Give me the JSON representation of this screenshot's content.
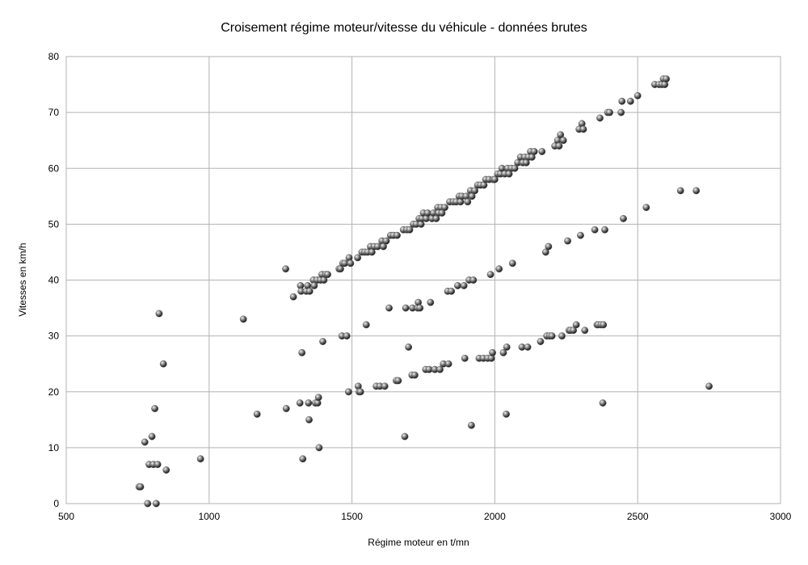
{
  "chart_data": {
    "type": "scatter",
    "title": "Croisement régime moteur/vitesse du véhicule - données brutes",
    "xlabel": "Régime moteur en t/mn",
    "ylabel": "Vitesses en km/h",
    "xlim": [
      500,
      3000
    ],
    "ylim": [
      0,
      80
    ],
    "xticks": [
      500,
      1000,
      1500,
      2000,
      2500,
      3000
    ],
    "yticks": [
      0,
      10,
      20,
      30,
      40,
      50,
      60,
      70,
      80
    ],
    "grid": true,
    "legend": "none",
    "marker_color": "#555555",
    "series": [
      {
        "points": [
          [
            755,
            3
          ],
          [
            760,
            3
          ],
          [
            775,
            11
          ],
          [
            785,
            0
          ],
          [
            790,
            7
          ],
          [
            800,
            12
          ],
          [
            805,
            7
          ],
          [
            810,
            17
          ],
          [
            815,
            0
          ],
          [
            820,
            7
          ],
          [
            825,
            34
          ],
          [
            840,
            25
          ],
          [
            850,
            6
          ],
          [
            970,
            8
          ],
          [
            1120,
            33
          ],
          [
            1168,
            16
          ],
          [
            1268,
            42
          ],
          [
            1270,
            17
          ],
          [
            1295,
            37
          ],
          [
            1318,
            18
          ],
          [
            1320,
            39
          ],
          [
            1322,
            38
          ],
          [
            1325,
            27
          ],
          [
            1328,
            8
          ],
          [
            1340,
            38
          ],
          [
            1345,
            39
          ],
          [
            1348,
            18
          ],
          [
            1350,
            15
          ],
          [
            1352,
            38
          ],
          [
            1365,
            40
          ],
          [
            1368,
            39
          ],
          [
            1372,
            18
          ],
          [
            1378,
            40
          ],
          [
            1380,
            18
          ],
          [
            1383,
            19
          ],
          [
            1385,
            10
          ],
          [
            1390,
            40
          ],
          [
            1395,
            41
          ],
          [
            1398,
            29
          ],
          [
            1402,
            40
          ],
          [
            1408,
            41
          ],
          [
            1415,
            41
          ],
          [
            1455,
            42
          ],
          [
            1460,
            42
          ],
          [
            1465,
            30
          ],
          [
            1468,
            43
          ],
          [
            1475,
            43
          ],
          [
            1482,
            30
          ],
          [
            1488,
            20
          ],
          [
            1490,
            44
          ],
          [
            1495,
            43
          ],
          [
            1520,
            44
          ],
          [
            1522,
            21
          ],
          [
            1525,
            20
          ],
          [
            1530,
            20
          ],
          [
            1535,
            45
          ],
          [
            1545,
            45
          ],
          [
            1550,
            32
          ],
          [
            1555,
            45
          ],
          [
            1565,
            46
          ],
          [
            1570,
            45
          ],
          [
            1578,
            46
          ],
          [
            1585,
            21
          ],
          [
            1590,
            46
          ],
          [
            1598,
            21
          ],
          [
            1605,
            47
          ],
          [
            1610,
            46
          ],
          [
            1615,
            21
          ],
          [
            1620,
            47
          ],
          [
            1630,
            35
          ],
          [
            1635,
            48
          ],
          [
            1645,
            48
          ],
          [
            1655,
            22
          ],
          [
            1658,
            48
          ],
          [
            1662,
            22
          ],
          [
            1680,
            49
          ],
          [
            1685,
            12
          ],
          [
            1688,
            35
          ],
          [
            1692,
            49
          ],
          [
            1698,
            28
          ],
          [
            1702,
            49
          ],
          [
            1710,
            23
          ],
          [
            1712,
            35
          ],
          [
            1715,
            50
          ],
          [
            1720,
            23
          ],
          [
            1725,
            50
          ],
          [
            1730,
            35
          ],
          [
            1732,
            36
          ],
          [
            1735,
            51
          ],
          [
            1738,
            35
          ],
          [
            1742,
            50
          ],
          [
            1745,
            51
          ],
          [
            1750,
            52
          ],
          [
            1758,
            24
          ],
          [
            1760,
            51
          ],
          [
            1765,
            52
          ],
          [
            1770,
            24
          ],
          [
            1775,
            36
          ],
          [
            1780,
            51
          ],
          [
            1785,
            52
          ],
          [
            1790,
            24
          ],
          [
            1795,
            51
          ],
          [
            1800,
            53
          ],
          [
            1803,
            52
          ],
          [
            1808,
            24
          ],
          [
            1812,
            53
          ],
          [
            1815,
            52
          ],
          [
            1820,
            25
          ],
          [
            1825,
            53
          ],
          [
            1835,
            38
          ],
          [
            1838,
            25
          ],
          [
            1842,
            54
          ],
          [
            1848,
            38
          ],
          [
            1855,
            54
          ],
          [
            1865,
            54
          ],
          [
            1870,
            39
          ],
          [
            1875,
            55
          ],
          [
            1880,
            54
          ],
          [
            1885,
            55
          ],
          [
            1892,
            39
          ],
          [
            1895,
            26
          ],
          [
            1900,
            55
          ],
          [
            1905,
            54
          ],
          [
            1910,
            40
          ],
          [
            1915,
            56
          ],
          [
            1918,
            14
          ],
          [
            1920,
            55
          ],
          [
            1925,
            40
          ],
          [
            1930,
            56
          ],
          [
            1940,
            57
          ],
          [
            1945,
            26
          ],
          [
            1950,
            57
          ],
          [
            1960,
            26
          ],
          [
            1962,
            57
          ],
          [
            1968,
            58
          ],
          [
            1975,
            26
          ],
          [
            1980,
            58
          ],
          [
            1985,
            41
          ],
          [
            1988,
            26
          ],
          [
            1992,
            27
          ],
          [
            1995,
            58
          ],
          [
            2000,
            58
          ],
          [
            2010,
            59
          ],
          [
            2015,
            42
          ],
          [
            2020,
            59
          ],
          [
            2025,
            60
          ],
          [
            2030,
            27
          ],
          [
            2035,
            59
          ],
          [
            2040,
            16
          ],
          [
            2042,
            28
          ],
          [
            2045,
            60
          ],
          [
            2050,
            59
          ],
          [
            2058,
            60
          ],
          [
            2062,
            43
          ],
          [
            2070,
            60
          ],
          [
            2080,
            61
          ],
          [
            2090,
            62
          ],
          [
            2095,
            28
          ],
          [
            2098,
            61
          ],
          [
            2105,
            62
          ],
          [
            2110,
            61
          ],
          [
            2115,
            28
          ],
          [
            2118,
            62
          ],
          [
            2125,
            63
          ],
          [
            2130,
            62
          ],
          [
            2138,
            63
          ],
          [
            2160,
            29
          ],
          [
            2165,
            63
          ],
          [
            2178,
            45
          ],
          [
            2182,
            30
          ],
          [
            2188,
            46
          ],
          [
            2192,
            30
          ],
          [
            2200,
            30
          ],
          [
            2210,
            64
          ],
          [
            2220,
            65
          ],
          [
            2225,
            64
          ],
          [
            2230,
            66
          ],
          [
            2235,
            30
          ],
          [
            2240,
            65
          ],
          [
            2255,
            47
          ],
          [
            2260,
            31
          ],
          [
            2265,
            31
          ],
          [
            2275,
            31
          ],
          [
            2285,
            32
          ],
          [
            2295,
            67
          ],
          [
            2300,
            48
          ],
          [
            2305,
            68
          ],
          [
            2310,
            67
          ],
          [
            2315,
            31
          ],
          [
            2350,
            49
          ],
          [
            2358,
            32
          ],
          [
            2362,
            32
          ],
          [
            2368,
            69
          ],
          [
            2372,
            32
          ],
          [
            2378,
            18
          ],
          [
            2380,
            32
          ],
          [
            2385,
            49
          ],
          [
            2395,
            70
          ],
          [
            2402,
            70
          ],
          [
            2442,
            70
          ],
          [
            2445,
            72
          ],
          [
            2450,
            51
          ],
          [
            2475,
            72
          ],
          [
            2500,
            73
          ],
          [
            2530,
            53
          ],
          [
            2560,
            75
          ],
          [
            2575,
            75
          ],
          [
            2585,
            75
          ],
          [
            2590,
            76
          ],
          [
            2595,
            75
          ],
          [
            2600,
            76
          ],
          [
            2650,
            56
          ],
          [
            2705,
            56
          ],
          [
            2750,
            21
          ]
        ]
      }
    ]
  }
}
